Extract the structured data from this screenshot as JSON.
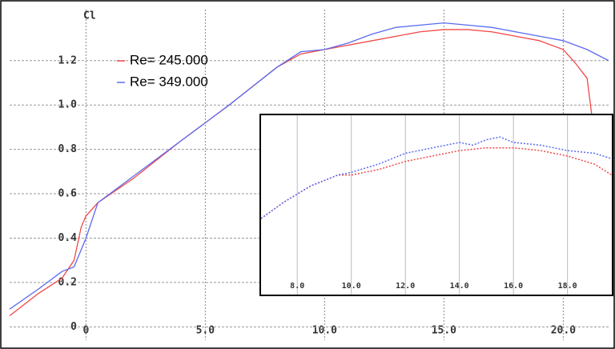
{
  "chart_data": [
    {
      "type": "line",
      "y_label": "Cl",
      "grid": true,
      "legend": "upper-left",
      "xlim": [
        -3.2,
        21.9
      ],
      "ylim": [
        -0.06,
        1.43
      ],
      "xticks": [
        0,
        {
          "value": 5,
          "label": "5.0"
        },
        {
          "value": 10,
          "label": "10.0"
        },
        {
          "value": 15,
          "label": "15.0"
        },
        {
          "value": 20,
          "label": "20.0"
        }
      ],
      "yticks": [
        0,
        0.2,
        0.4,
        0.6,
        0.8,
        {
          "value": 1,
          "label": "1.0"
        },
        1.2
      ],
      "series": [
        {
          "name": "Re= 245.000",
          "color": "#f04848",
          "x": [
            -3.2,
            -2,
            -1,
            -0.5,
            -0.2,
            0,
            0.5,
            2,
            4,
            6,
            8,
            9,
            10,
            12,
            14,
            15,
            16,
            17,
            18,
            19,
            20,
            20.5,
            21,
            21.2
          ],
          "values": [
            0.05,
            0.15,
            0.22,
            0.3,
            0.45,
            0.5,
            0.56,
            0.67,
            0.84,
            1.0,
            1.17,
            1.23,
            1.25,
            1.29,
            1.33,
            1.34,
            1.34,
            1.33,
            1.31,
            1.29,
            1.25,
            1.19,
            1.12,
            0.95
          ]
        },
        {
          "name": "Re= 349.000",
          "color": "#5a6af0",
          "x": [
            -3.2,
            -2,
            -1,
            -0.5,
            0,
            0.5,
            2,
            4,
            6,
            8,
            9,
            10,
            11,
            12,
            13,
            14,
            15,
            16,
            17,
            18,
            19,
            20,
            21,
            21.9
          ],
          "values": [
            0.08,
            0.17,
            0.25,
            0.27,
            0.4,
            0.56,
            0.68,
            0.84,
            1.0,
            1.17,
            1.24,
            1.25,
            1.28,
            1.32,
            1.35,
            1.36,
            1.37,
            1.36,
            1.35,
            1.33,
            1.31,
            1.29,
            1.25,
            1.2
          ]
        }
      ]
    },
    {
      "type": "line",
      "grid": true,
      "xlim": [
        6.66,
        19.64
      ],
      "ylim": [
        0.8,
        1.46
      ],
      "xticks": [
        {
          "value": 8,
          "label": "8.0"
        },
        {
          "value": 10,
          "label": "10.0"
        },
        {
          "value": 12,
          "label": "12.0"
        },
        {
          "value": 14,
          "label": "14.0"
        },
        {
          "value": 16,
          "label": "16.0"
        },
        {
          "value": 18,
          "label": "18.0"
        }
      ],
      "series": [
        {
          "color": "#f04848",
          "x": [
            6.66,
            7.5,
            8,
            8.5,
            9,
            9.5,
            10,
            11,
            12,
            13,
            14,
            15,
            16,
            17,
            18,
            19,
            19.64
          ],
          "values": [
            1.08,
            1.14,
            1.17,
            1.2,
            1.22,
            1.24,
            1.24,
            1.26,
            1.29,
            1.31,
            1.33,
            1.34,
            1.34,
            1.33,
            1.31,
            1.28,
            1.24
          ]
        },
        {
          "color": "#5a6af0",
          "x": [
            6.66,
            7.5,
            8,
            8.5,
            9,
            9.5,
            10,
            11,
            12,
            13,
            14,
            14.5,
            15,
            15.5,
            16,
            17,
            18,
            19,
            19.64
          ],
          "values": [
            1.08,
            1.14,
            1.17,
            1.2,
            1.22,
            1.24,
            1.25,
            1.28,
            1.32,
            1.34,
            1.36,
            1.35,
            1.37,
            1.38,
            1.36,
            1.35,
            1.33,
            1.32,
            1.3
          ]
        }
      ]
    }
  ]
}
